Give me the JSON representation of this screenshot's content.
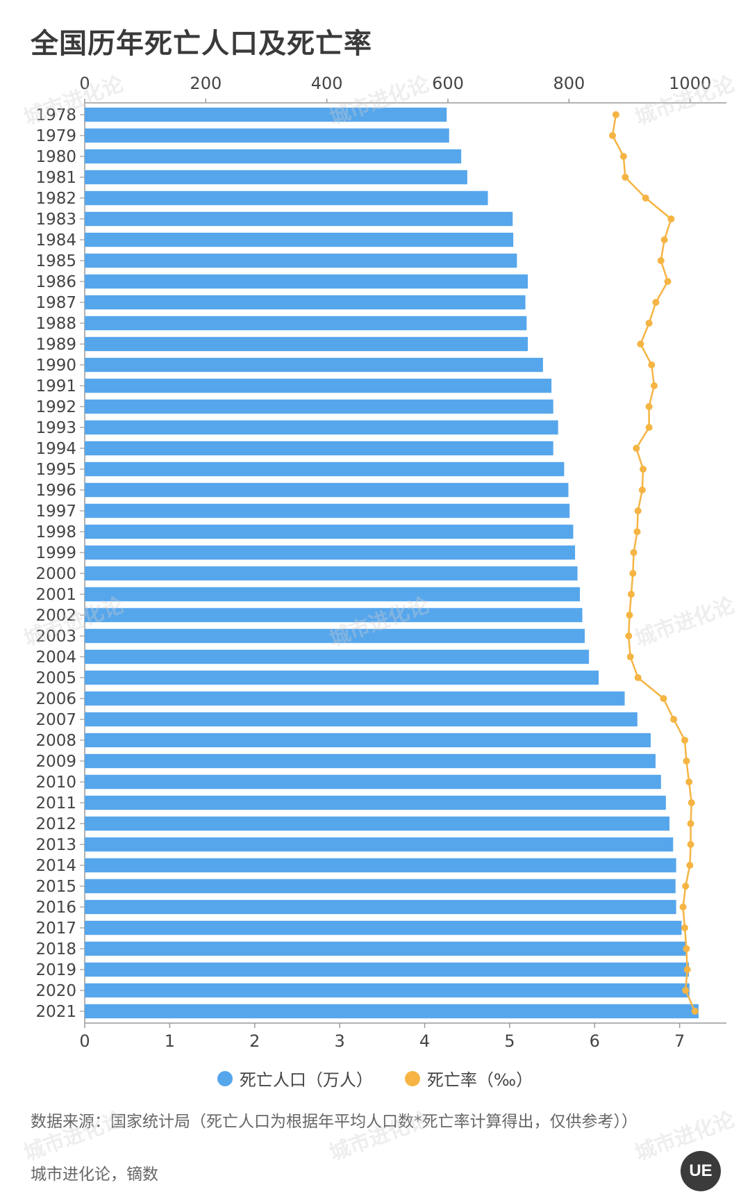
{
  "title": "全国历年死亡人口及死亡率",
  "legend": {
    "deaths_label": "死亡人口（万人）",
    "rate_label": "死亡率（‰）"
  },
  "source_note": "数据来源：国家统计局（死亡人口为根据年平均人口数*死亡率计算得出，仅供参考））",
  "credit": "城市进化论，镝数",
  "logo_text": "UE",
  "watermark_text": "城市进化论",
  "colors": {
    "bar": "#56a6ec",
    "line": "#f5b443",
    "axis": "#999999"
  },
  "chart_data": {
    "type": "bar",
    "orientation": "horizontal",
    "categories": [
      "1978",
      "1979",
      "1980",
      "1981",
      "1982",
      "1983",
      "1984",
      "1985",
      "1986",
      "1987",
      "1988",
      "1989",
      "1990",
      "1991",
      "1992",
      "1993",
      "1994",
      "1995",
      "1996",
      "1997",
      "1998",
      "1999",
      "2000",
      "2001",
      "2002",
      "2003",
      "2004",
      "2005",
      "2006",
      "2007",
      "2008",
      "2009",
      "2010",
      "2011",
      "2012",
      "2013",
      "2014",
      "2015",
      "2016",
      "2017",
      "2018",
      "2019",
      "2020",
      "2021"
    ],
    "series": [
      {
        "name": "死亡人口（万人）",
        "type": "bar",
        "axis": "top",
        "values": [
          598,
          602,
          622,
          632,
          666,
          707,
          708,
          714,
          732,
          728,
          730,
          732,
          757,
          771,
          774,
          782,
          774,
          792,
          799,
          801,
          807,
          810,
          814,
          818,
          822,
          826,
          833,
          849,
          892,
          913,
          935,
          943,
          952,
          960,
          966,
          972,
          977,
          976,
          977,
          986,
          993,
          998,
          999,
          1014
        ]
      },
      {
        "name": "死亡率（‰）",
        "type": "line",
        "axis": "bottom",
        "values": [
          6.25,
          6.21,
          6.34,
          6.36,
          6.6,
          6.9,
          6.82,
          6.78,
          6.86,
          6.72,
          6.64,
          6.54,
          6.67,
          6.7,
          6.64,
          6.64,
          6.49,
          6.57,
          6.56,
          6.51,
          6.5,
          6.46,
          6.45,
          6.43,
          6.41,
          6.4,
          6.42,
          6.51,
          6.81,
          6.93,
          7.06,
          7.08,
          7.11,
          7.14,
          7.13,
          7.13,
          7.12,
          7.07,
          7.04,
          7.06,
          7.08,
          7.09,
          7.07,
          7.18
        ]
      }
    ],
    "top_axis": {
      "ticks": [
        0,
        200,
        400,
        600,
        800,
        1000
      ],
      "range": [
        0,
        1060
      ]
    },
    "bottom_axis": {
      "ticks": [
        0,
        1,
        2,
        3,
        4,
        5,
        6,
        7
      ],
      "range": [
        0,
        7.55
      ]
    },
    "legend_position": "bottom"
  }
}
